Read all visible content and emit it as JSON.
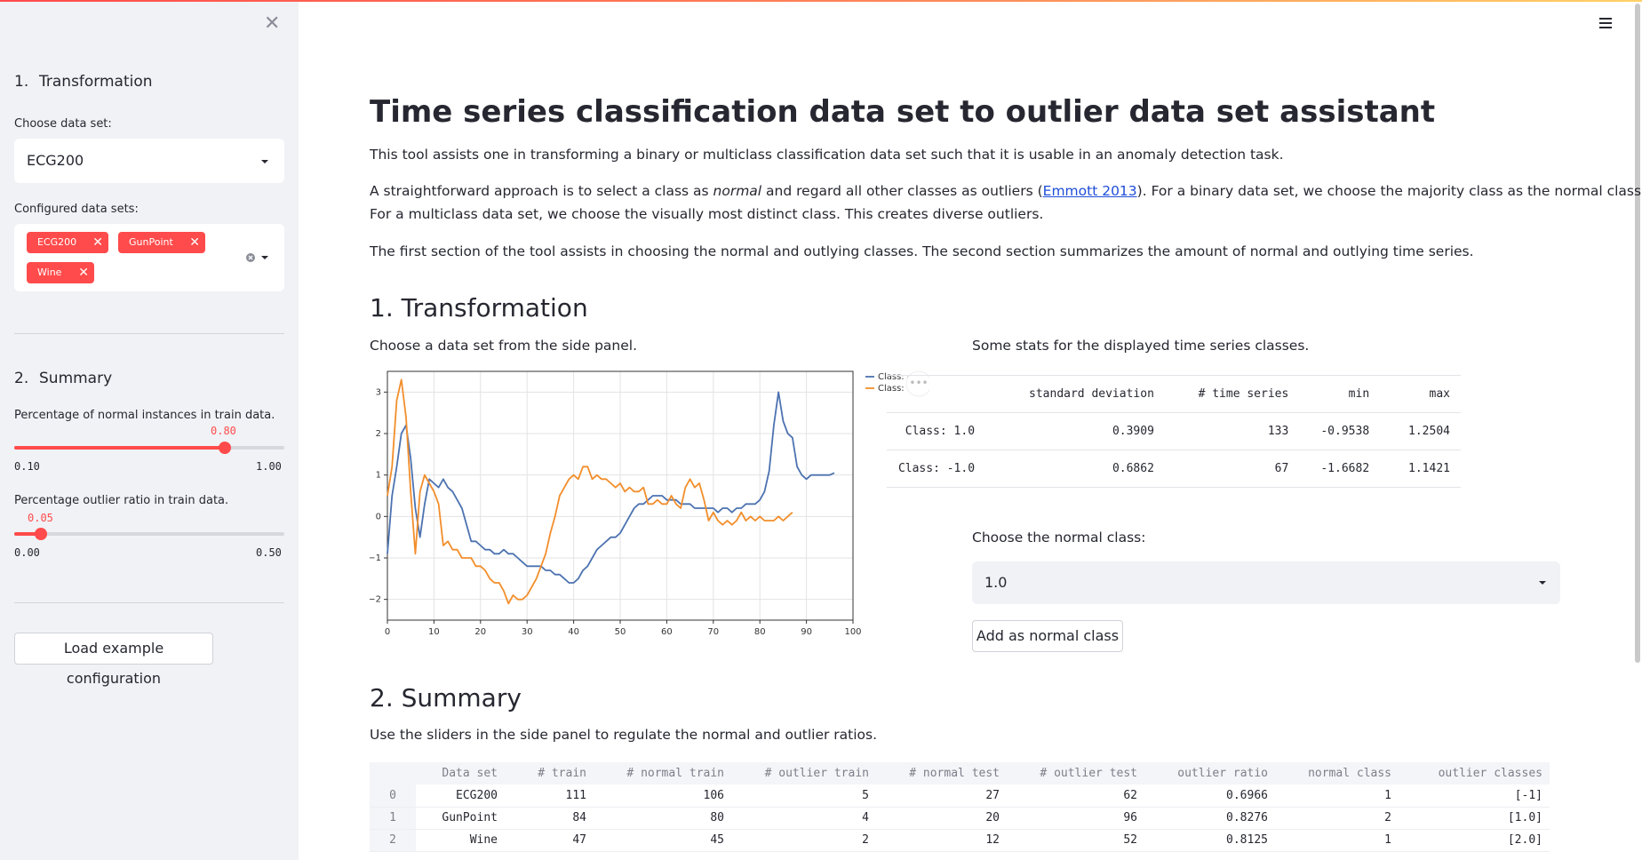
{
  "sidebar": {
    "section1": {
      "num": "1.",
      "label": "Transformation"
    },
    "choose_label": "Choose data set:",
    "choose_value": "ECG200",
    "configured_label": "Configured data sets:",
    "tags": [
      "ECG200",
      "GunPoint",
      "Wine"
    ],
    "section2": {
      "num": "2.",
      "label": "Summary"
    },
    "slider1": {
      "label": "Percentage of normal instances in train data.",
      "value": "0.80",
      "min": "0.10",
      "max": "1.00",
      "level": 0.778
    },
    "slider2": {
      "label": "Percentage outlier ratio in train data.",
      "value": "0.05",
      "min": "0.00",
      "max": "0.50",
      "level": 0.1
    },
    "load_button": "Load example configuration"
  },
  "main": {
    "title": "Time series classification data set to outlier data set assistant",
    "intro": "This tool assists one in transforming a binary or multiclass classification data set such that it is usable in an anomaly detection task.",
    "para2_a": "A straightforward approach is to select a class as ",
    "para2_em": "normal",
    "para2_b": " and regard all other classes as outliers (",
    "para2_link": "Emmott 2013",
    "para2_c": "). For a binary data set, we choose the majority class as the normal class.",
    "para2_d": "For a multiclass data set, we choose the visually most distinct class. This creates diverse outliers.",
    "para3": "The first section of the tool assists in choosing the normal and outlying classes. The second section summarizes the amount of normal and outlying time series.",
    "h_transform": "1. Transformation",
    "choose_side": "Choose a data set from the side panel.",
    "stats_caption": "Some stats for the displayed time series classes.",
    "stats": {
      "headers": [
        "",
        "standard deviation",
        "# time series",
        "min",
        "max"
      ],
      "rows": [
        [
          "Class: 1.0",
          "0.3909",
          "133",
          "-0.9538",
          "1.2504"
        ],
        [
          "Class: -1.0",
          "0.6862",
          "67",
          "-1.6682",
          "1.1421"
        ]
      ]
    },
    "normal_class_label": "Choose the normal class:",
    "normal_class_value": "1.0",
    "add_button": "Add as normal class",
    "h_summary": "2. Summary",
    "summary_caption": "Use the sliders in the side panel to regulate the normal and outlier ratios.",
    "summary": {
      "headers": [
        "",
        "Data set",
        "# train",
        "# normal train",
        "# outlier train",
        "# normal test",
        "# outlier test",
        "outlier ratio",
        "normal class",
        "outlier classes"
      ],
      "rows": [
        [
          "0",
          "ECG200",
          "111",
          "106",
          "5",
          "27",
          "62",
          "0.6966",
          "1",
          "[-1]"
        ],
        [
          "1",
          "GunPoint",
          "84",
          "80",
          "4",
          "20",
          "96",
          "0.8276",
          "2",
          "[1.0]"
        ],
        [
          "2",
          "Wine",
          "47",
          "45",
          "2",
          "12",
          "52",
          "0.8125",
          "1",
          "[2.0]"
        ]
      ]
    }
  },
  "colors": {
    "accent": "#ff4b4b",
    "series_a": "#4c72b0",
    "series_b": "#f28e2b"
  },
  "chart_data": {
    "type": "line",
    "xlim": [
      0,
      100
    ],
    "ylim": [
      -2.5,
      3.5
    ],
    "xticks": [
      "0",
      "10",
      "20",
      "30",
      "40",
      "50",
      "60",
      "70",
      "80",
      "90",
      "100"
    ],
    "yticks": [
      "3",
      "2",
      "1",
      "0",
      "−1",
      "−2"
    ],
    "legend": "top-right",
    "series": [
      {
        "name": "Class: -1.0",
        "color": "#4c72b0",
        "y": [
          -0.9,
          0.5,
          1.2,
          2.0,
          2.2,
          1.4,
          0.2,
          -0.5,
          0.3,
          0.9,
          0.8,
          0.7,
          0.9,
          0.7,
          0.6,
          0.4,
          0.2,
          -0.2,
          -0.6,
          -0.6,
          -0.7,
          -0.8,
          -0.8,
          -0.9,
          -0.9,
          -0.8,
          -0.9,
          -0.9,
          -1.0,
          -1.1,
          -1.2,
          -1.2,
          -1.2,
          -1.2,
          -1.3,
          -1.3,
          -1.4,
          -1.4,
          -1.5,
          -1.6,
          -1.6,
          -1.5,
          -1.3,
          -1.2,
          -1.0,
          -0.8,
          -0.7,
          -0.6,
          -0.5,
          -0.5,
          -0.4,
          -0.2,
          0.0,
          0.2,
          0.3,
          0.3,
          0.4,
          0.5,
          0.5,
          0.5,
          0.4,
          0.4,
          0.4,
          0.3,
          0.3,
          0.3,
          0.2,
          0.2,
          0.2,
          0.2,
          0.2,
          0.1,
          0.2,
          0.2,
          0.1,
          0.2,
          0.2,
          0.3,
          0.3,
          0.3,
          0.4,
          0.6,
          1.1,
          2.2,
          3.0,
          2.3,
          2.0,
          1.9,
          1.2,
          1.0,
          0.9,
          1.0,
          1.0,
          1.0,
          1.0,
          1.0,
          1.05
        ]
      },
      {
        "name": "Class: 1.0",
        "color": "#f28e2b",
        "y": [
          0.5,
          1.2,
          2.8,
          3.3,
          2.4,
          0.6,
          -0.9,
          0.6,
          1.0,
          0.8,
          0.6,
          0.3,
          -0.7,
          -0.6,
          -0.8,
          -0.8,
          -1.0,
          -1.0,
          -1.0,
          -1.2,
          -1.2,
          -1.3,
          -1.5,
          -1.6,
          -1.6,
          -1.8,
          -2.1,
          -1.9,
          -2.0,
          -2.0,
          -1.9,
          -1.7,
          -1.5,
          -1.2,
          -0.9,
          -0.4,
          0.0,
          0.5,
          0.7,
          0.9,
          1.0,
          0.9,
          1.2,
          1.2,
          0.9,
          1.0,
          0.9,
          0.9,
          0.8,
          0.7,
          0.8,
          0.6,
          0.7,
          0.6,
          0.6,
          0.7,
          0.3,
          0.3,
          0.4,
          0.3,
          0.3,
          0.5,
          0.3,
          0.2,
          0.7,
          0.9,
          0.7,
          0.8,
          0.4,
          -0.1,
          0.1,
          -0.1,
          -0.2,
          -0.1,
          -0.2,
          -0.1,
          0.1,
          -0.1,
          0.0,
          -0.1,
          0.0,
          -0.1,
          -0.1,
          -0.1,
          0.0,
          -0.1,
          0.0,
          0.1
        ]
      }
    ]
  }
}
